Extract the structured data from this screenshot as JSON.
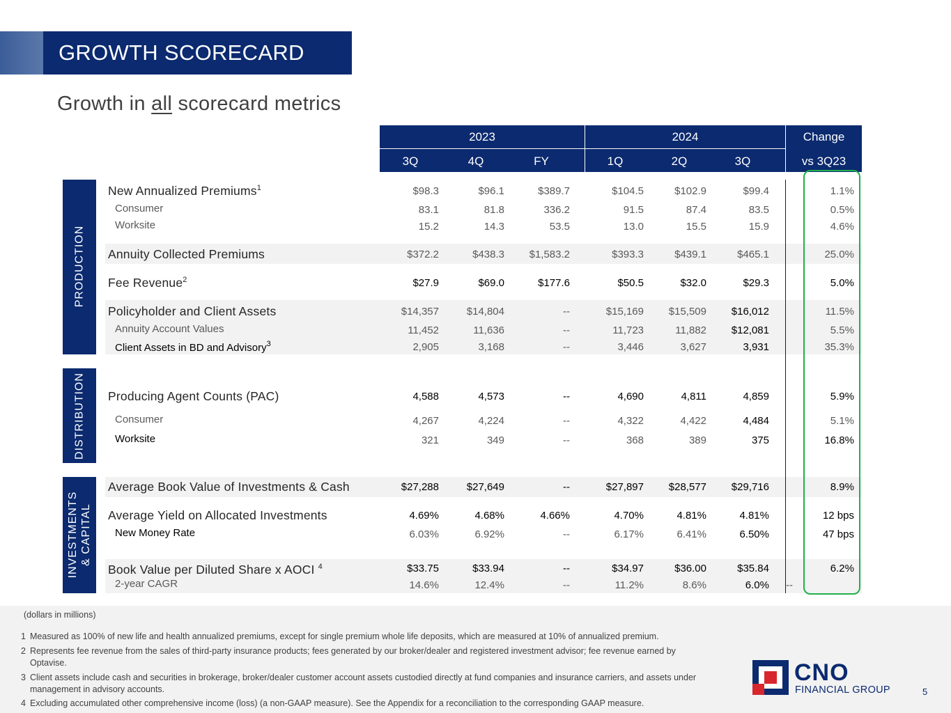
{
  "title": "GROWTH SCORECARD",
  "subtitle": {
    "before": "Growth in ",
    "underlined": "all",
    "after": " scorecard metrics"
  },
  "headers": {
    "year_2023": "2023",
    "year_2024": "2024",
    "change": "Change",
    "change_sub": "vs 3Q23",
    "periods": [
      "3Q",
      "4Q",
      "FY",
      "1Q",
      "2Q",
      "3Q"
    ]
  },
  "sections": {
    "production": "PRODUCTION",
    "distribution": "DISTRIBUTION",
    "investments_line1": "INVESTMENTS",
    "investments_line2": "& CAPITAL"
  },
  "rows": [
    {
      "label": "New Annualized Premiums",
      "sup": "1",
      "cells": [
        "$98.3",
        "$96.1",
        "$389.7",
        "$104.5",
        "$102.9",
        "$99.4",
        "1.1%"
      ]
    },
    {
      "label": "Consumer",
      "cells": [
        "83.1",
        "81.8",
        "336.2",
        "91.5",
        "87.4",
        "83.5",
        "0.5%"
      ]
    },
    {
      "label": "Worksite",
      "cells": [
        "15.2",
        "14.3",
        "53.5",
        "13.0",
        "15.5",
        "15.9",
        "4.6%"
      ]
    },
    {
      "label": "Annuity Collected Premiums",
      "cells": [
        "$372.2",
        "$438.3",
        "$1,583.2",
        "$393.3",
        "$439.1",
        "$465.1",
        "25.0%"
      ]
    },
    {
      "label": "Fee Revenue",
      "sup": "2",
      "cells": [
        "$27.9",
        "$69.0",
        "$177.6",
        "$50.5",
        "$32.0",
        "$29.3",
        "5.0%"
      ]
    },
    {
      "label": "Policyholder and Client Assets",
      "cells": [
        "$14,357",
        "$14,804",
        "--",
        "$15,169",
        "$15,509",
        "$16,012",
        "11.5%"
      ]
    },
    {
      "label": "Annuity Account Values",
      "cells": [
        "11,452",
        "11,636",
        "--",
        "11,723",
        "11,882",
        "$12,081",
        "5.5%"
      ]
    },
    {
      "label": "Client Assets in BD and Advisory",
      "sup": "3",
      "cells": [
        "2,905",
        "3,168",
        "--",
        "3,446",
        "3,627",
        "3,931",
        "35.3%"
      ]
    },
    {
      "label": "Producing Agent Counts (PAC)",
      "cells": [
        "4,588",
        "4,573",
        "--",
        "4,690",
        "4,811",
        "4,859",
        "5.9%"
      ]
    },
    {
      "label": "Consumer",
      "cells": [
        "4,267",
        "4,224",
        "--",
        "4,322",
        "4,422",
        "4,484",
        "5.1%"
      ]
    },
    {
      "label": "Worksite",
      "cells": [
        "321",
        "349",
        "--",
        "368",
        "389",
        "375",
        "16.8%"
      ]
    },
    {
      "label": "Average Book Value of Investments & Cash",
      "cells": [
        "$27,288",
        "$27,649",
        "--",
        "$27,897",
        "$28,577",
        "$29,716",
        "8.9%"
      ]
    },
    {
      "label": "Average Yield on Allocated Investments",
      "cells": [
        "4.69%",
        "4.68%",
        "4.66%",
        "4.70%",
        "4.81%",
        "4.81%",
        "12 bps"
      ]
    },
    {
      "label": "New Money Rate",
      "cells": [
        "6.03%",
        "6.92%",
        "--",
        "6.17%",
        "6.41%",
        "6.50%",
        "47 bps"
      ]
    },
    {
      "label": "Book Value per Diluted Share x AOCI",
      "sup": "4",
      "cells": [
        "$33.75",
        "$33.94",
        "--",
        "$34.97",
        "$36.00",
        "$35.84",
        "6.2%"
      ]
    },
    {
      "label": "2-year CAGR",
      "cells": [
        "14.6%",
        "12.4%",
        "--",
        "11.2%",
        "8.6%",
        "6.0%",
        "--"
      ]
    }
  ],
  "footer": {
    "units": "(dollars in millions)",
    "notes": [
      {
        "num": "1",
        "text": "Measured as 100% of new life and health annualized premiums, except for single premium whole life deposits, which are measured at 10% of annualized premium."
      },
      {
        "num": "2",
        "text": "Represents fee revenue from the sales of third-party insurance products; fees generated by our broker/dealer and registered investment advisor; fee revenue earned by Optavise."
      },
      {
        "num": "3",
        "text": "Client assets include cash and securities in brokerage, broker/dealer customer account assets custodied directly at fund companies and insurance carriers, and assets under management in advisory accounts."
      },
      {
        "num": "4",
        "text": "Excluding accumulated other comprehensive income (loss) (a non-GAAP measure). See the Appendix for a reconciliation to the corresponding GAAP measure."
      }
    ]
  },
  "logo": {
    "name": "CNO",
    "sub": "FINANCIAL GROUP"
  },
  "page_number": "5"
}
